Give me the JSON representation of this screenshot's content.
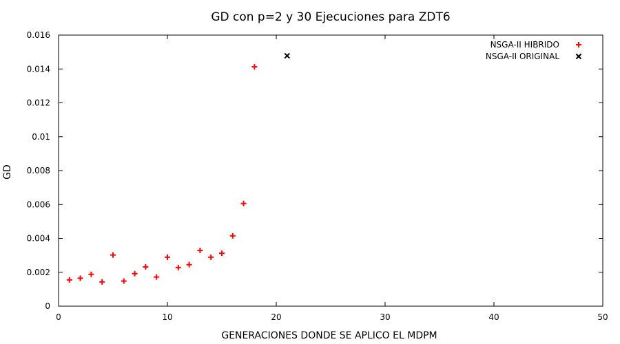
{
  "chart_data": {
    "type": "scatter",
    "title": "GD con p=2 y 30 Ejecuciones para ZDT6",
    "xlabel": "GENERACIONES DONDE SE APLICO EL MDPM",
    "ylabel": "GD",
    "xlim": [
      0,
      50
    ],
    "ylim": [
      0,
      0.016
    ],
    "xticks": [
      "0",
      "10",
      "20",
      "30",
      "40",
      "50"
    ],
    "yticks": [
      "0",
      "0.002",
      "0.004",
      "0.006",
      "0.008",
      "0.01",
      "0.012",
      "0.014",
      "0.016"
    ],
    "grid": false,
    "legend_position": "top-right",
    "series": [
      {
        "name": "NSGA-II HIBRIDO",
        "marker": "plus",
        "color": "#ff0000",
        "x": [
          1,
          2,
          3,
          4,
          5,
          6,
          7,
          8,
          9,
          10,
          11,
          12,
          13,
          14,
          15,
          16,
          17,
          18
        ],
        "y": [
          0.00155,
          0.00165,
          0.00188,
          0.00143,
          0.00302,
          0.00148,
          0.00192,
          0.00232,
          0.00172,
          0.00289,
          0.00228,
          0.00245,
          0.00329,
          0.00289,
          0.00312,
          0.00415,
          0.00606,
          0.01413
        ]
      },
      {
        "name": "NSGA-II ORIGINAL",
        "marker": "cross",
        "color": "#000000",
        "x": [
          21
        ],
        "y": [
          0.01478
        ]
      }
    ]
  }
}
